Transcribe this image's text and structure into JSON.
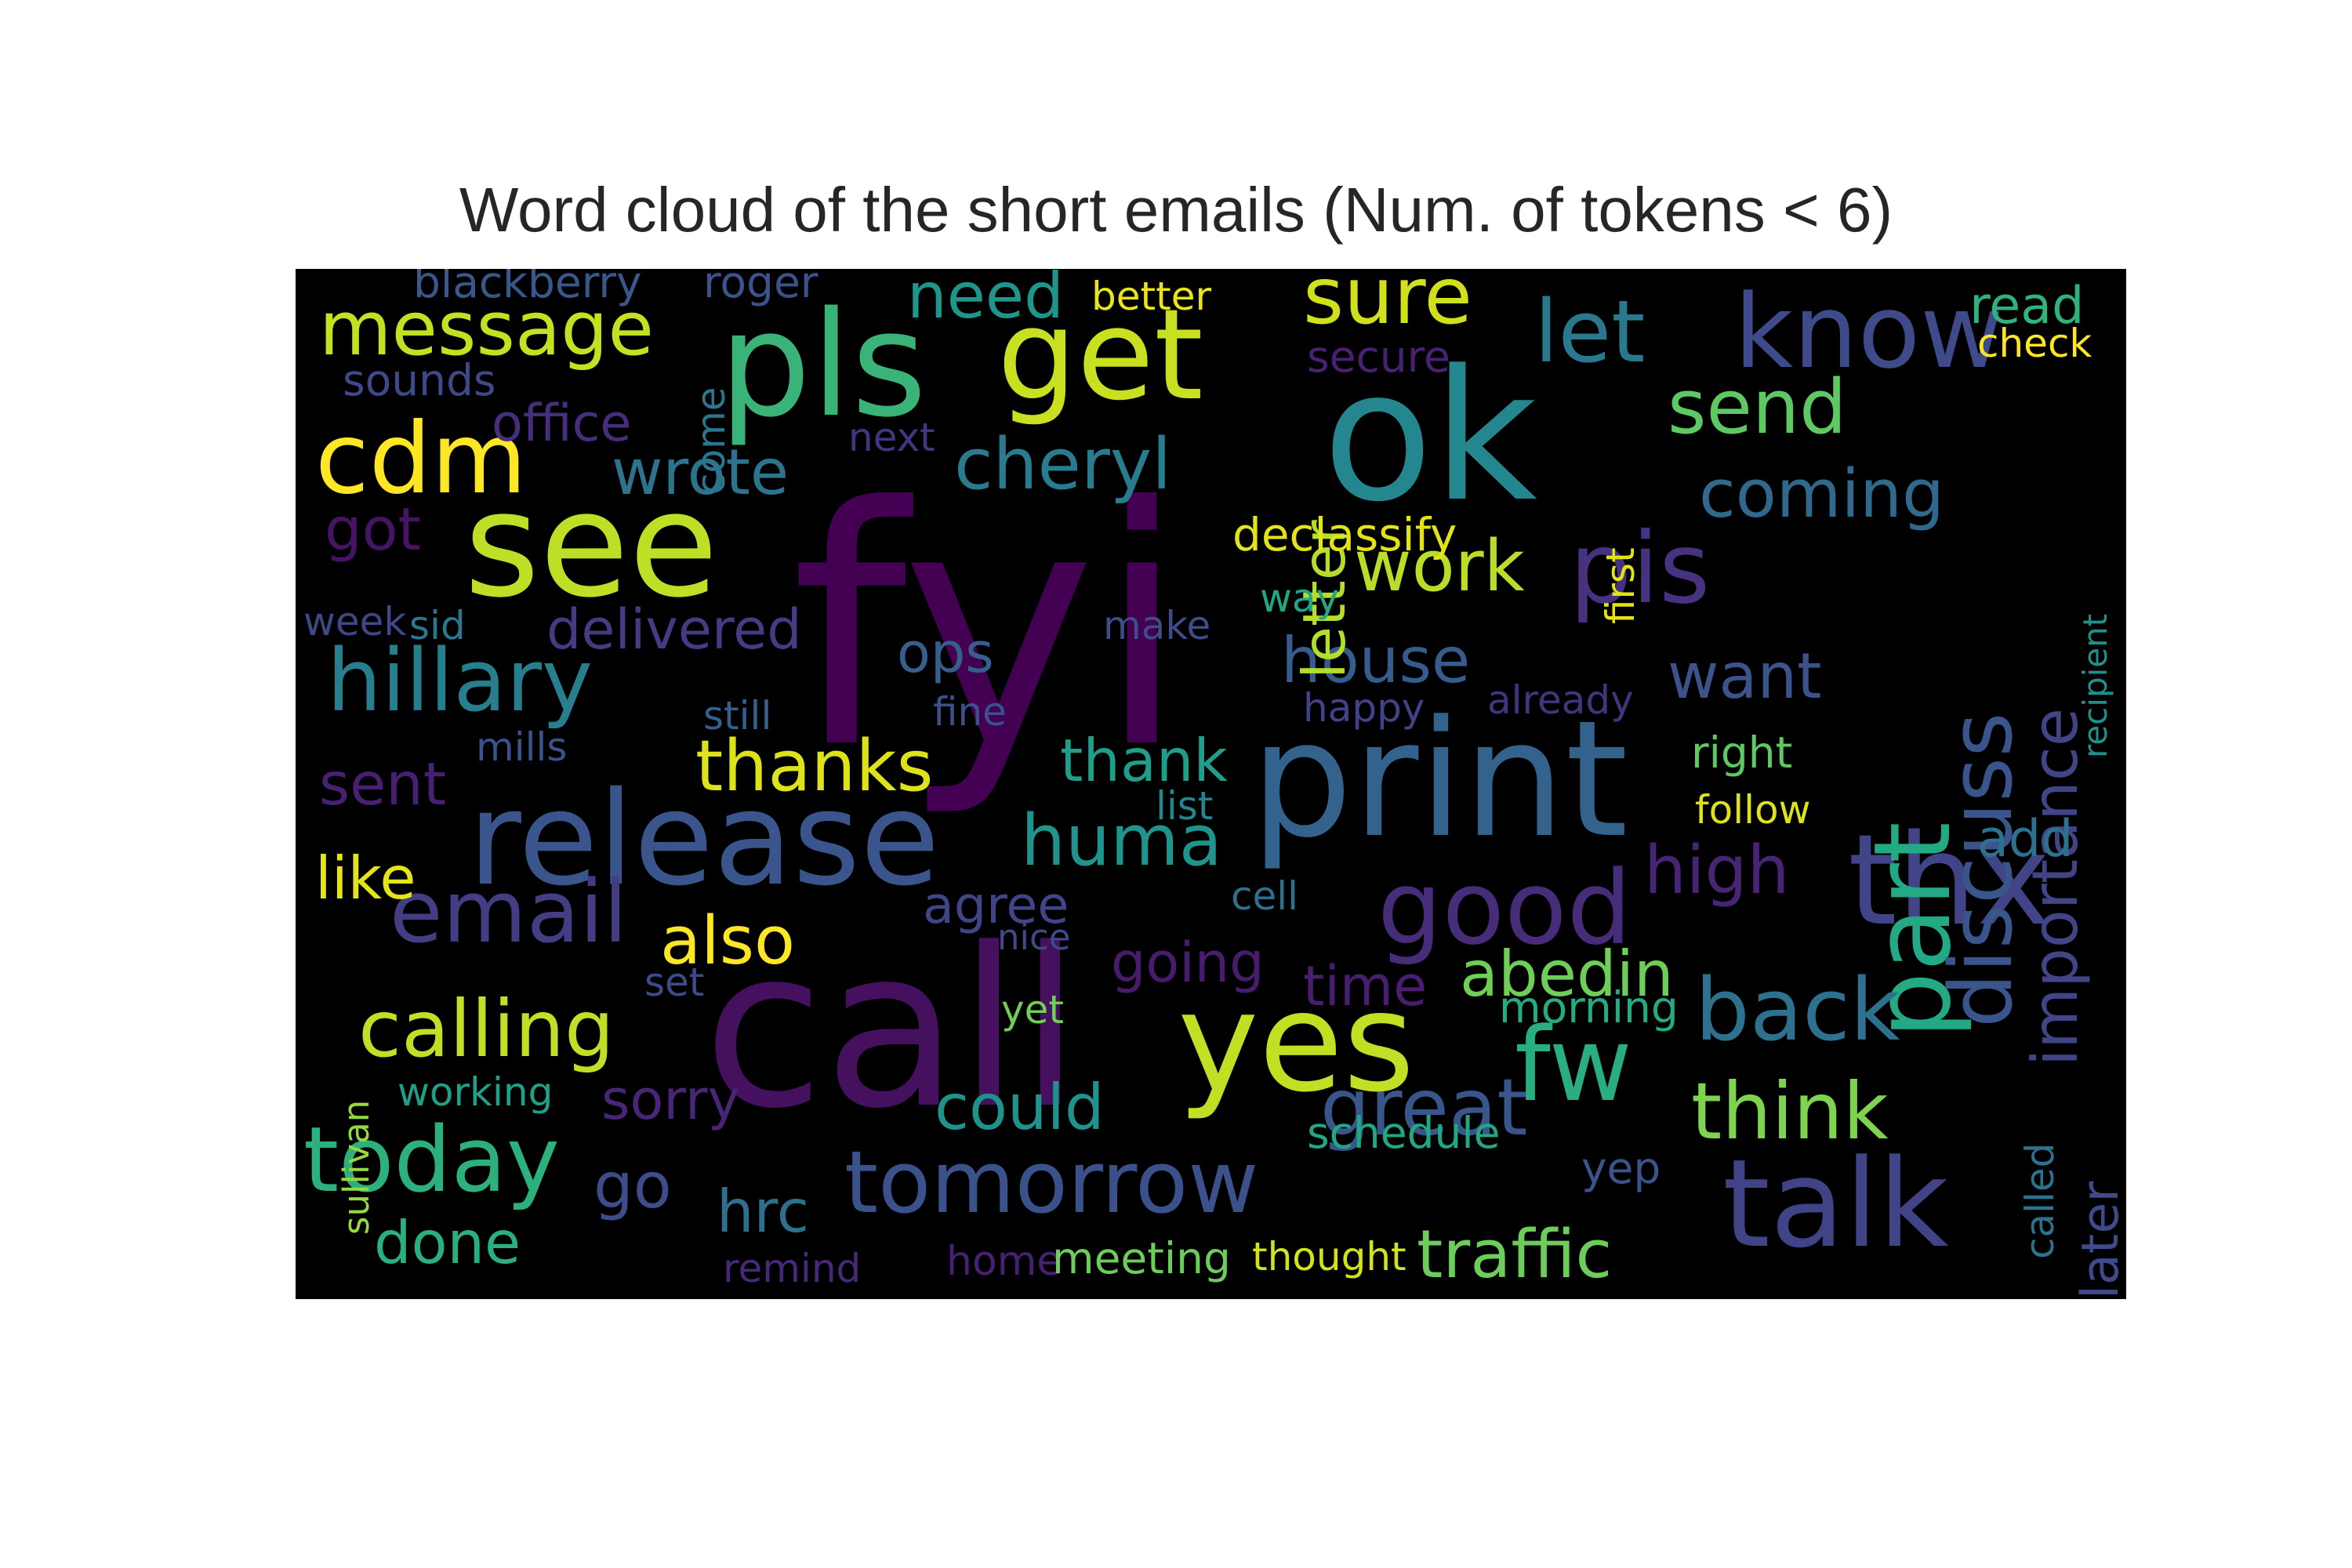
{
  "title": "Word cloud of the short emails (Num. of tokens < 6)",
  "chart_data": {
    "type": "wordcloud",
    "background": "#000000",
    "colormap": "viridis",
    "words": [
      {
        "text": "fyi",
        "color": "#440154"
      },
      {
        "text": "call",
        "color": "#45105e"
      },
      {
        "text": "ok",
        "color": "#24868e"
      },
      {
        "text": "print",
        "color": "#33638d"
      },
      {
        "text": "pls",
        "color": "#3ab378"
      },
      {
        "text": "see",
        "color": "#bddf26"
      },
      {
        "text": "get",
        "color": "#c8e020"
      },
      {
        "text": "yes",
        "color": "#c2df23"
      },
      {
        "text": "release",
        "color": "#3a548c"
      },
      {
        "text": "thx",
        "color": "#414487"
      },
      {
        "text": "talk",
        "color": "#404487"
      },
      {
        "text": "part",
        "color": "#23a983"
      },
      {
        "text": "know",
        "color": "#3e4a89"
      },
      {
        "text": "good",
        "color": "#472c7a"
      },
      {
        "text": "tomorrow",
        "color": "#3b518b"
      },
      {
        "text": "today",
        "color": "#2cb17e"
      },
      {
        "text": "fw",
        "color": "#29af7f"
      },
      {
        "text": "cdm",
        "color": "#fde725"
      },
      {
        "text": "pis",
        "color": "#46327e"
      },
      {
        "text": "hillary",
        "color": "#277f8e"
      },
      {
        "text": "discuss",
        "color": "#3a548c"
      },
      {
        "text": "email",
        "color": "#433d84"
      },
      {
        "text": "calling",
        "color": "#c0df25"
      },
      {
        "text": "let",
        "color": "#2a788e"
      },
      {
        "text": "message",
        "color": "#c5e021"
      },
      {
        "text": "back",
        "color": "#2d718e"
      },
      {
        "text": "sure",
        "color": "#d0e11c"
      },
      {
        "text": "think",
        "color": "#7fd34e"
      },
      {
        "text": "great",
        "color": "#39568c"
      },
      {
        "text": "importance",
        "color": "#414487"
      },
      {
        "text": "send",
        "color": "#5ec962"
      },
      {
        "text": "cheryl",
        "color": "#287c8e"
      },
      {
        "text": "huma",
        "color": "#1f948c"
      },
      {
        "text": "traffic",
        "color": "#6ccd5a"
      },
      {
        "text": "thanks",
        "color": "#dde318"
      },
      {
        "text": "work",
        "color": "#bade28"
      },
      {
        "text": "wrote",
        "color": "#2c738e"
      },
      {
        "text": "coming",
        "color": "#31688e"
      },
      {
        "text": "high",
        "color": "#482475"
      },
      {
        "text": "house",
        "color": "#365c8d"
      },
      {
        "text": "need",
        "color": "#1f968b"
      },
      {
        "text": "want",
        "color": "#3b528b"
      },
      {
        "text": "abedin",
        "color": "#6ece58"
      },
      {
        "text": "letter",
        "color": "#b5de2b"
      },
      {
        "text": "also",
        "color": "#fde725"
      },
      {
        "text": "could",
        "color": "#20928c"
      },
      {
        "text": "done",
        "color": "#2ab07f"
      },
      {
        "text": "go",
        "color": "#3e4c8a"
      },
      {
        "text": "hrc",
        "color": "#2d708e"
      },
      {
        "text": "like",
        "color": "#e5e419"
      },
      {
        "text": "sent",
        "color": "#482071"
      },
      {
        "text": "got",
        "color": "#471365"
      },
      {
        "text": "delivered",
        "color": "#443b84"
      },
      {
        "text": "thank",
        "color": "#1f9e89"
      },
      {
        "text": "going",
        "color": "#481b6d"
      },
      {
        "text": "time",
        "color": "#481f70"
      },
      {
        "text": "sorry",
        "color": "#482575"
      },
      {
        "text": "ops",
        "color": "#355f8d"
      },
      {
        "text": "agree",
        "color": "#404588"
      },
      {
        "text": "declassify",
        "color": "#e2e418"
      },
      {
        "text": "read",
        "color": "#2eb37c"
      },
      {
        "text": "add",
        "color": "#2c728e"
      },
      {
        "text": "office",
        "color": "#472e7c"
      },
      {
        "text": "blackberry",
        "color": "#38588c"
      },
      {
        "text": "roger",
        "color": "#3b528b"
      },
      {
        "text": "come",
        "color": "#2a768e"
      },
      {
        "text": "secure",
        "color": "#482173"
      },
      {
        "text": "sounds",
        "color": "#3e4989"
      },
      {
        "text": "better",
        "color": "#e8e419"
      },
      {
        "text": "check",
        "color": "#fde725"
      },
      {
        "text": "next",
        "color": "#453581"
      },
      {
        "text": "first",
        "color": "#e3e418"
      },
      {
        "text": "recipient",
        "color": "#21908d"
      },
      {
        "text": "week",
        "color": "#3f4788"
      },
      {
        "text": "sid",
        "color": "#2a778e"
      },
      {
        "text": "make",
        "color": "#3e4c8a"
      },
      {
        "text": "way",
        "color": "#22a785"
      },
      {
        "text": "still",
        "color": "#35608d"
      },
      {
        "text": "fine",
        "color": "#3c508b"
      },
      {
        "text": "happy",
        "color": "#414287"
      },
      {
        "text": "already",
        "color": "#46337f"
      },
      {
        "text": "mills",
        "color": "#3b528b"
      },
      {
        "text": "right",
        "color": "#5ec962"
      },
      {
        "text": "follow",
        "color": "#dde318"
      },
      {
        "text": "list",
        "color": "#25858e"
      },
      {
        "text": "cell",
        "color": "#2d708e"
      },
      {
        "text": "nice",
        "color": "#3f4889"
      },
      {
        "text": "set",
        "color": "#3e4a89"
      },
      {
        "text": "yet",
        "color": "#6ece58"
      },
      {
        "text": "morning",
        "color": "#25ab82"
      },
      {
        "text": "sullivan",
        "color": "#95d840"
      },
      {
        "text": "working",
        "color": "#1fa088"
      },
      {
        "text": "schedule",
        "color": "#22a785"
      },
      {
        "text": "called",
        "color": "#2c728e"
      },
      {
        "text": "later",
        "color": "#3e4a89"
      },
      {
        "text": "yep",
        "color": "#3b528b"
      },
      {
        "text": "remind",
        "color": "#482878"
      },
      {
        "text": "home",
        "color": "#482071"
      },
      {
        "text": "meeting",
        "color": "#6ccd5a"
      },
      {
        "text": "thought",
        "color": "#d2e21b"
      }
    ]
  }
}
